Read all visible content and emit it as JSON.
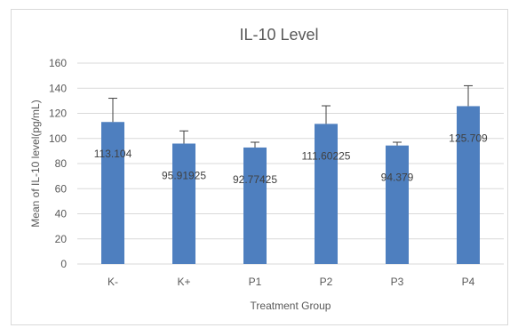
{
  "chart_data": {
    "type": "bar",
    "title": "IL-10 Level",
    "xlabel": "Treatment Group",
    "ylabel": "Mean of  IL-10 level(pg/mL)",
    "ylim": [
      0,
      160
    ],
    "yticks": [
      0,
      20,
      40,
      60,
      80,
      100,
      120,
      140,
      160
    ],
    "categories": [
      "K-",
      "K+",
      "P1",
      "P2",
      "P3",
      "P4"
    ],
    "values": [
      113.104,
      95.91925,
      92.77425,
      111.60225,
      94.379,
      125.709
    ],
    "data_labels": [
      "113.104",
      "95.91925",
      "92.77425",
      "111.60225",
      "94.379",
      "125.709"
    ],
    "error_upper": [
      132,
      106,
      97,
      126,
      97,
      142
    ],
    "grid": true,
    "legend": "none",
    "bar_color": "#4e7fbf",
    "error_bar_color": "#404040",
    "grid_color": "#d9d9d9"
  }
}
